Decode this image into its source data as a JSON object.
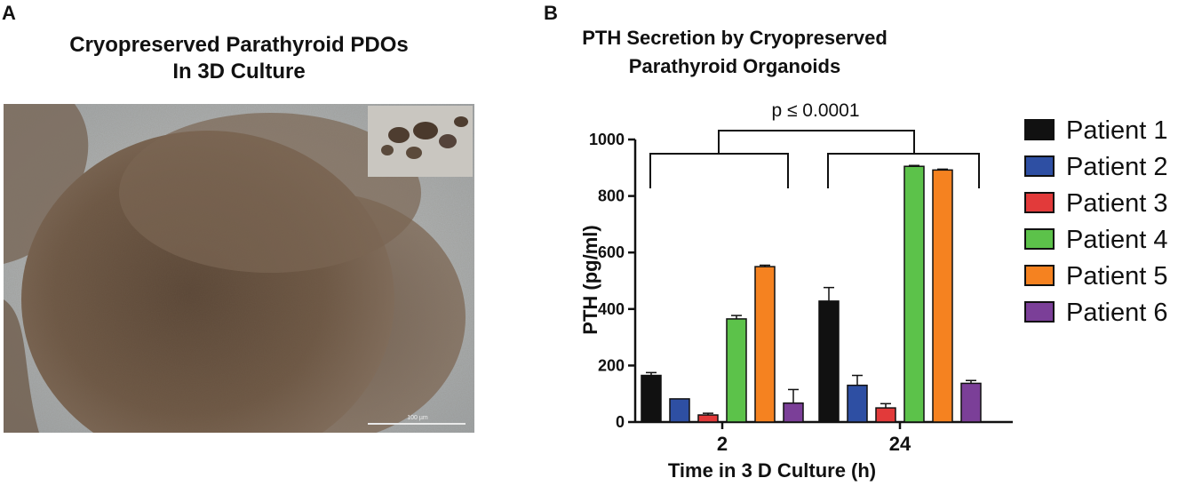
{
  "panel_a": {
    "letter": "A",
    "title_line1": "Cryopreserved Parathyroid PDOs",
    "title_line2": "In 3D Culture",
    "scale_bar_label": "100 µm"
  },
  "panel_b": {
    "letter": "B"
  },
  "chart_data": {
    "type": "bar",
    "title_line1": "PTH Secretion by Cryopreserved",
    "title_line2": "Parathyroid Organoids",
    "xlabel": "Time in 3 D Culture (h)",
    "ylabel": "PTH (pg/ml)",
    "ylim": [
      0,
      1000
    ],
    "yticks": [
      0,
      200,
      400,
      600,
      800,
      1000
    ],
    "categories": [
      "2",
      "24"
    ],
    "series": [
      {
        "name": "Patient 1",
        "color": "#111111",
        "values": [
          165,
          428
        ],
        "errors": [
          10,
          48
        ]
      },
      {
        "name": "Patient 2",
        "color": "#2e4fa3",
        "values": [
          82,
          130
        ],
        "errors": [
          0,
          35
        ]
      },
      {
        "name": "Patient 3",
        "color": "#e23a3a",
        "values": [
          25,
          50
        ],
        "errors": [
          6,
          15
        ]
      },
      {
        "name": "Patient 4",
        "color": "#5cc24a",
        "values": [
          365,
          905
        ],
        "errors": [
          12,
          3
        ]
      },
      {
        "name": "Patient 5",
        "color": "#f58220",
        "values": [
          550,
          892
        ],
        "errors": [
          5,
          3
        ]
      },
      {
        "name": "Patient 6",
        "color": "#7b3f98",
        "values": [
          67,
          137
        ],
        "errors": [
          48,
          10
        ]
      }
    ],
    "annotation": "p ≤ 0.0001",
    "legend_position": "right"
  }
}
